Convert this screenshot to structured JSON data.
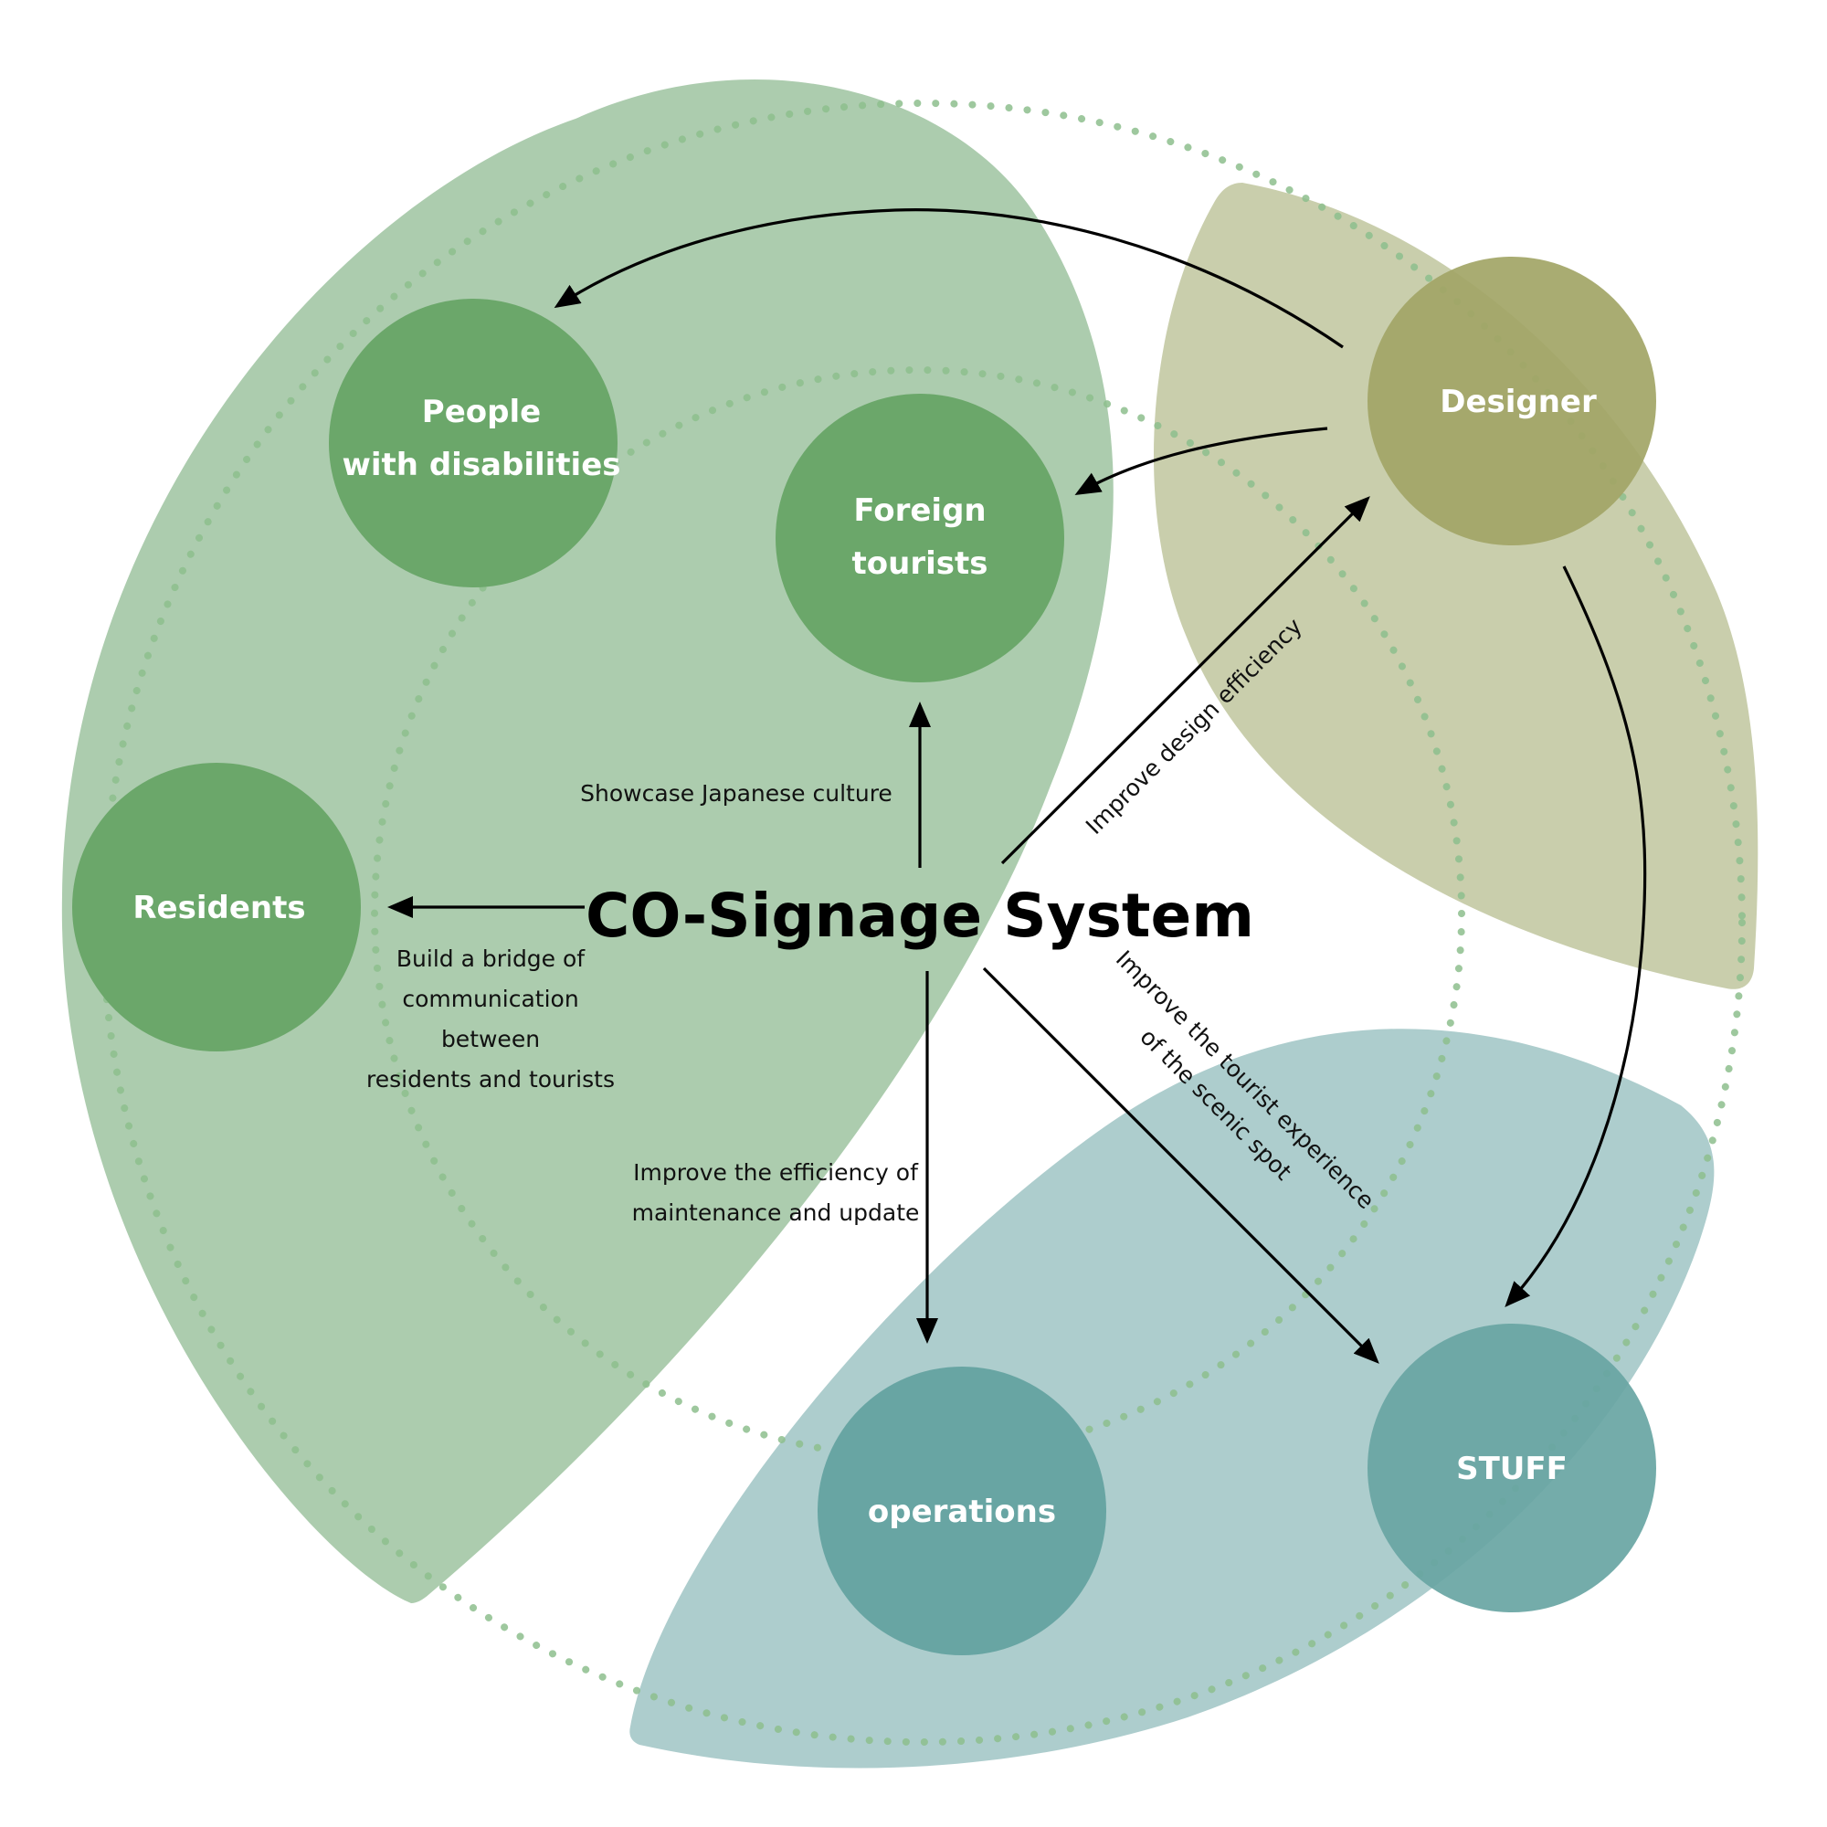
{
  "title": "CO-Signage System",
  "nodes": {
    "disabilities": {
      "line1": "People",
      "line2": "with disabilities"
    },
    "foreign_tourists": {
      "line1": "Foreign",
      "line2": "tourists"
    },
    "residents": {
      "label": "Residents"
    },
    "designer": {
      "label": "Designer"
    },
    "operations": {
      "label": "operations"
    },
    "stuff": {
      "label": "STUFF"
    }
  },
  "edges": {
    "showcase": "Showcase Japanese culture",
    "bridge": [
      "Build a bridge of",
      "communication",
      "between",
      "residents and tourists"
    ],
    "design_efficiency": "Improve design efficiency",
    "maintenance": [
      "Improve the efficiency of",
      "maintenance and update"
    ],
    "tourist_experience": [
      "Improve the tourist experience",
      "of the scenic spot"
    ]
  },
  "colors": {
    "green_region": "#acccae",
    "olive_region": "#c9ceac",
    "teal_region": "#adcdcd",
    "green_node": "#6ba76a",
    "olive_node": "#a2a566",
    "teal_node": "#68a5a3",
    "dotted_ring": "#8dbe8d"
  }
}
